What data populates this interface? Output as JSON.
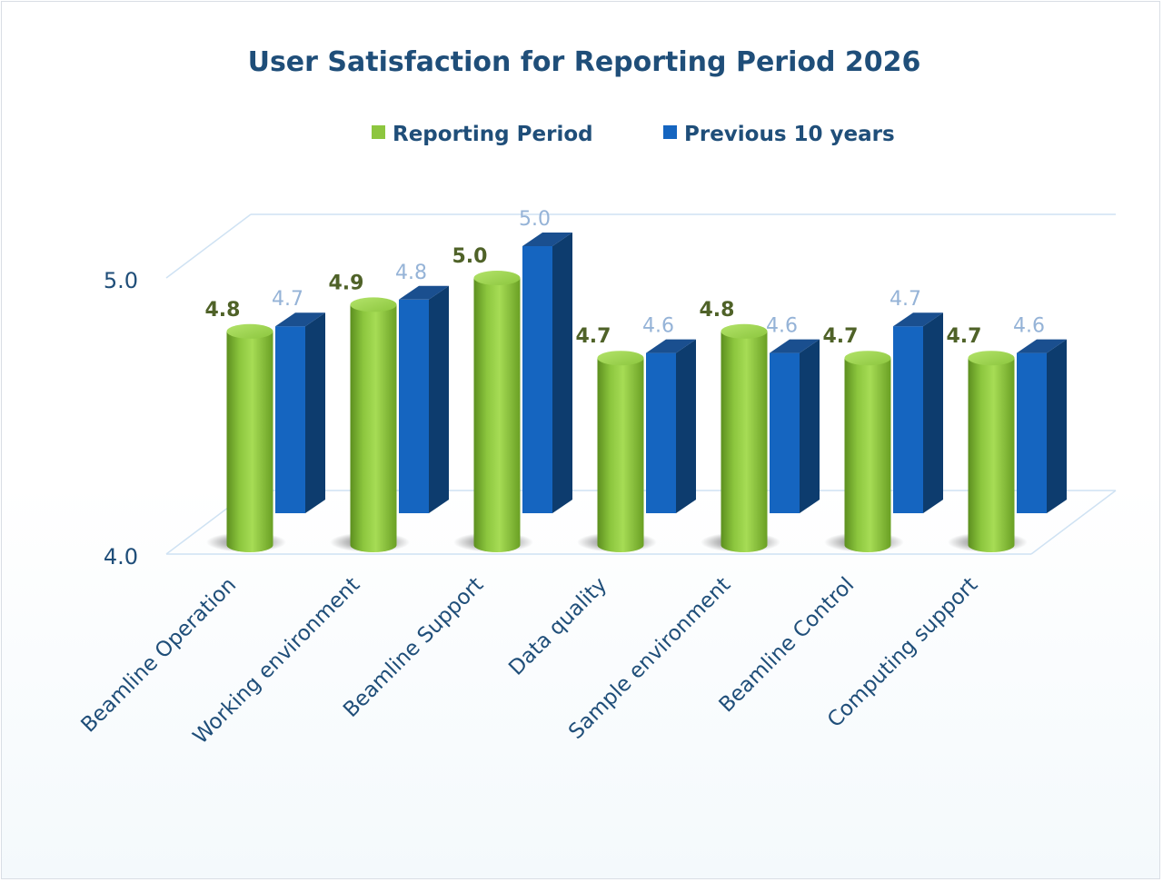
{
  "chart_data": {
    "type": "bar",
    "title": "User Satisfaction for Reporting Period 2026",
    "categories": [
      "Beamline Operation",
      "Working environment",
      "Beamline Support",
      "Data quality",
      "Sample environment",
      "Beamline Control",
      "Computing support"
    ],
    "series": [
      {
        "name": "Reporting Period",
        "values": [
          4.8,
          4.9,
          5.0,
          4.7,
          4.8,
          4.7,
          4.7
        ],
        "color": "#8dc63f"
      },
      {
        "name": "Previous 10 years",
        "values": [
          4.7,
          4.8,
          5.0,
          4.6,
          4.6,
          4.7,
          4.6
        ],
        "color": "#1565c0"
      }
    ],
    "value_labels": {
      "current": [
        "4.8",
        "4.9",
        "5.0",
        "4.7",
        "4.8",
        "4.7",
        "4.7"
      ],
      "previous": [
        "4.7",
        "4.8",
        "5.0",
        "4.6",
        "4.6",
        "4.7",
        "4.6"
      ]
    },
    "yticks": [
      "4.0",
      "5.0"
    ],
    "ylim": [
      4.0,
      5.0
    ],
    "legend_position": "top",
    "grid": true,
    "three_d": true
  }
}
